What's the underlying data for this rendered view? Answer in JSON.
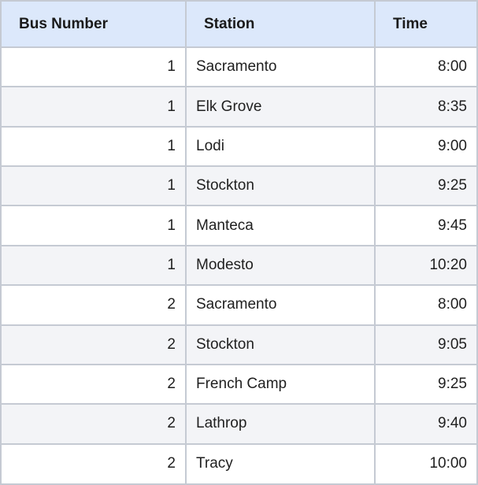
{
  "table": {
    "headers": [
      "Bus Number",
      "Station",
      "Time"
    ],
    "rows": [
      {
        "bus": "1",
        "station": "Sacramento",
        "time": "8:00"
      },
      {
        "bus": "1",
        "station": "Elk Grove",
        "time": "8:35"
      },
      {
        "bus": "1",
        "station": "Lodi",
        "time": "9:00"
      },
      {
        "bus": "1",
        "station": "Stockton",
        "time": "9:25"
      },
      {
        "bus": "1",
        "station": "Manteca",
        "time": "9:45"
      },
      {
        "bus": "1",
        "station": "Modesto",
        "time": "10:20"
      },
      {
        "bus": "2",
        "station": "Sacramento",
        "time": "8:00"
      },
      {
        "bus": "2",
        "station": "Stockton",
        "time": "9:05"
      },
      {
        "bus": "2",
        "station": "French Camp",
        "time": "9:25"
      },
      {
        "bus": "2",
        "station": "Lathrop",
        "time": "9:40"
      },
      {
        "bus": "2",
        "station": "Tracy",
        "time": "10:00"
      }
    ]
  },
  "colors": {
    "header_background": "#dce8fb",
    "alternate_row_background": "#f3f4f7",
    "border": "#c5cad3"
  }
}
